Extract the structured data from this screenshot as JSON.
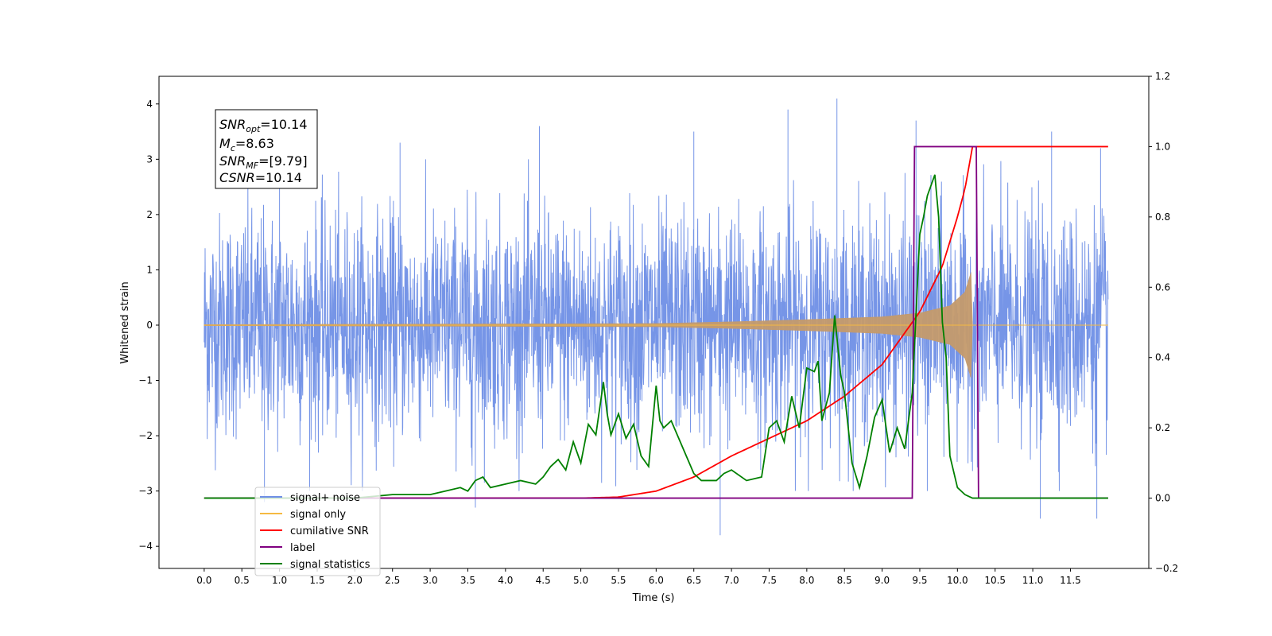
{
  "chart_data": {
    "type": "line",
    "title": "",
    "xlabel": "Time (s)",
    "ylabel": "Whitened strain",
    "xlim": [
      -0.6,
      12.54
    ],
    "ylim": [
      -4.4,
      4.5
    ],
    "y2lim": [
      -0.2,
      1.2
    ],
    "x_ticks": [
      "0.0",
      "0.5",
      "1.0",
      "1.5",
      "2.0",
      "2.5",
      "3.0",
      "3.5",
      "4.0",
      "4.5",
      "5.0",
      "5.5",
      "6.0",
      "6.5",
      "7.0",
      "7.5",
      "8.0",
      "8.5",
      "9.0",
      "9.5",
      "10.0",
      "10.5",
      "11.0",
      "11.5"
    ],
    "y_ticks": [
      "4",
      "3",
      "2",
      "1",
      "0",
      "−1",
      "−2",
      "−3",
      "−4"
    ],
    "y2_ticks": [
      "1.2",
      "1.0",
      "0.8",
      "0.6",
      "0.4",
      "0.2",
      "0.0",
      "−0.2"
    ],
    "grid": false,
    "legend_position": "lower-left",
    "annotation": {
      "line1_sym": "SNR",
      "line1_sub": "opt",
      "line1_val": "=10.14",
      "line2_sym": "M",
      "line2_sub": "c",
      "line2_val": "=8.63",
      "line3_sym": "SNR",
      "line3_sub": "MF",
      "line3_val": "=[9.79]",
      "line4_sym": "CSNR",
      "line4_val": "=10.14"
    },
    "series": [
      {
        "name": "signal+ noise",
        "axis": "left",
        "color": "#6f8fe6",
        "kind": "noise",
        "x_range": [
          0.0,
          12.0
        ],
        "band_sigma": 1.0,
        "extreme_peaks": [
          [
            1.0,
            3.5
          ],
          [
            2.6,
            3.3
          ],
          [
            4.45,
            3.6
          ],
          [
            6.5,
            3.5
          ],
          [
            7.75,
            3.9
          ],
          [
            8.4,
            4.1
          ],
          [
            9.45,
            3.7
          ],
          [
            11.25,
            3.5
          ],
          [
            11.9,
            3.2
          ],
          [
            6.85,
            -3.8
          ],
          [
            3.6,
            -3.3
          ],
          [
            11.1,
            -3.5
          ],
          [
            11.85,
            -3.5
          ],
          [
            0.8,
            -3.2
          ],
          [
            9.6,
            -3.0
          ]
        ]
      },
      {
        "name": "signal only",
        "axis": "left",
        "color": "#f5b942",
        "kind": "chirp",
        "x_range": [
          0.0,
          12.0
        ],
        "merger_time": 10.2,
        "envelope": [
          [
            0.0,
            0.01
          ],
          [
            6.0,
            0.03
          ],
          [
            7.0,
            0.06
          ],
          [
            8.0,
            0.1
          ],
          [
            9.0,
            0.15
          ],
          [
            9.5,
            0.22
          ],
          [
            9.9,
            0.35
          ],
          [
            10.1,
            0.6
          ],
          [
            10.19,
            1.0
          ],
          [
            10.2,
            0.0
          ],
          [
            12.0,
            0.0
          ]
        ]
      },
      {
        "name": "cumilative SNR",
        "axis": "right",
        "color": "#ff0000",
        "x": [
          0.0,
          5.0,
          5.5,
          6.0,
          6.5,
          7.0,
          7.5,
          8.0,
          8.5,
          9.0,
          9.5,
          9.8,
          10.0,
          10.1,
          10.15,
          10.2,
          12.0
        ],
        "y": [
          0.0,
          0.0,
          0.003,
          0.02,
          0.06,
          0.12,
          0.17,
          0.22,
          0.29,
          0.38,
          0.53,
          0.66,
          0.8,
          0.88,
          0.94,
          1.0,
          1.0
        ]
      },
      {
        "name": "label",
        "axis": "right",
        "color": "#800080",
        "x": [
          0.0,
          9.4,
          9.43,
          10.25,
          10.28,
          12.0
        ],
        "y": [
          0.0,
          0.0,
          1.0,
          1.0,
          0.0,
          0.0
        ]
      },
      {
        "name": "signal statistics",
        "axis": "right",
        "color": "#008000",
        "x": [
          0.0,
          1.0,
          2.0,
          2.5,
          3.0,
          3.2,
          3.4,
          3.5,
          3.6,
          3.7,
          3.8,
          4.0,
          4.2,
          4.4,
          4.5,
          4.6,
          4.7,
          4.8,
          4.9,
          5.0,
          5.1,
          5.2,
          5.3,
          5.35,
          5.4,
          5.5,
          5.6,
          5.7,
          5.8,
          5.9,
          6.0,
          6.05,
          6.1,
          6.2,
          6.3,
          6.4,
          6.5,
          6.6,
          6.7,
          6.8,
          6.9,
          7.0,
          7.2,
          7.4,
          7.5,
          7.6,
          7.7,
          7.8,
          7.9,
          8.0,
          8.1,
          8.15,
          8.2,
          8.3,
          8.37,
          8.45,
          8.5,
          8.6,
          8.7,
          8.8,
          8.9,
          9.0,
          9.1,
          9.2,
          9.3,
          9.4,
          9.5,
          9.55,
          9.6,
          9.7,
          9.75,
          9.8,
          9.85,
          9.9,
          10.0,
          10.1,
          10.2,
          12.0
        ],
        "y": [
          0.0,
          0.0,
          0.0,
          0.01,
          0.01,
          0.02,
          0.03,
          0.02,
          0.05,
          0.06,
          0.03,
          0.04,
          0.05,
          0.04,
          0.06,
          0.09,
          0.11,
          0.08,
          0.16,
          0.1,
          0.21,
          0.18,
          0.33,
          0.24,
          0.18,
          0.24,
          0.17,
          0.21,
          0.12,
          0.09,
          0.32,
          0.22,
          0.2,
          0.22,
          0.17,
          0.12,
          0.07,
          0.05,
          0.05,
          0.05,
          0.07,
          0.08,
          0.05,
          0.06,
          0.2,
          0.22,
          0.16,
          0.29,
          0.2,
          0.37,
          0.36,
          0.39,
          0.22,
          0.3,
          0.52,
          0.35,
          0.3,
          0.1,
          0.03,
          0.12,
          0.23,
          0.28,
          0.13,
          0.2,
          0.14,
          0.3,
          0.75,
          0.8,
          0.86,
          0.92,
          0.8,
          0.5,
          0.4,
          0.12,
          0.03,
          0.01,
          0.0,
          0.0
        ]
      }
    ]
  }
}
